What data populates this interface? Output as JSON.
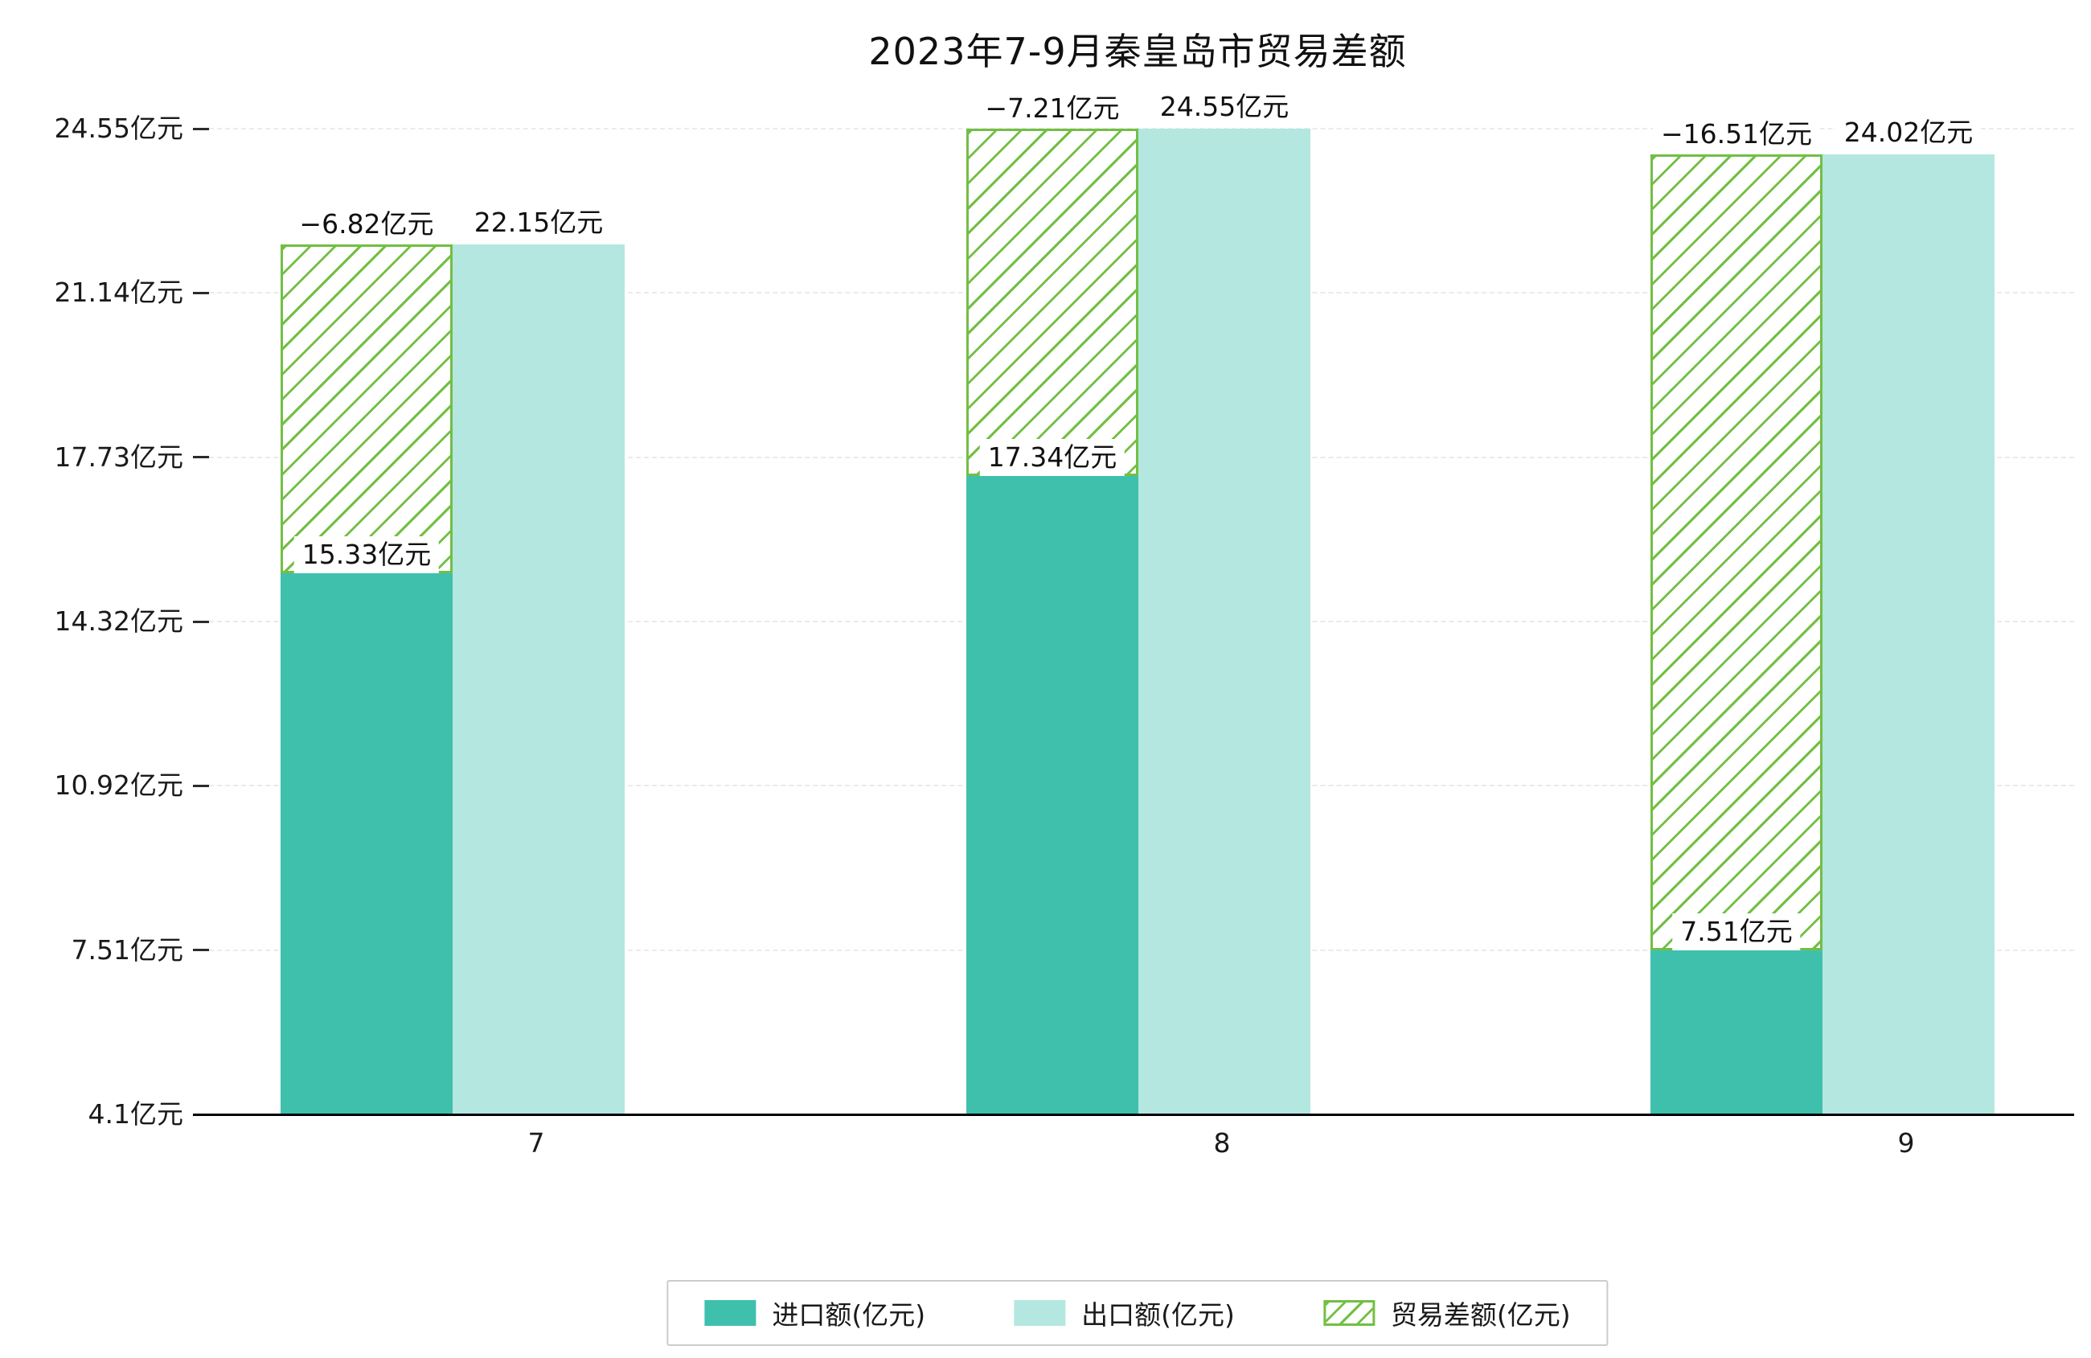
{
  "chart_data": {
    "type": "bar",
    "title": "2023年7-9月秦皇岛市贸易差额",
    "categories": [
      "7",
      "8",
      "9"
    ],
    "series": [
      {
        "name": "进口额(亿元)",
        "values": [
          15.33,
          17.34,
          7.51
        ],
        "labels": [
          "15.33亿元",
          "17.34亿元",
          "7.51亿元"
        ],
        "color": "#3fc0ad",
        "style": "solid"
      },
      {
        "name": "出口额(亿元)",
        "values": [
          22.15,
          24.55,
          24.02
        ],
        "labels": [
          "22.15亿元",
          "24.55亿元",
          "24.02亿元"
        ],
        "color": "#b4e7e0",
        "style": "solid"
      },
      {
        "name": "贸易差额(亿元)",
        "values": [
          -6.82,
          -7.21,
          -16.51
        ],
        "labels": [
          "−6.82亿元",
          "−7.21亿元",
          "−16.51亿元"
        ],
        "color": "#72bf44",
        "style": "hatched"
      }
    ],
    "y_axis": {
      "min": 4.1,
      "max": 24.55,
      "ticks": [
        {
          "value": 24.55,
          "label": "24.55亿元"
        },
        {
          "value": 21.14,
          "label": "21.14亿元"
        },
        {
          "value": 17.73,
          "label": "17.73亿元"
        },
        {
          "value": 14.32,
          "label": "14.32亿元"
        },
        {
          "value": 10.92,
          "label": "10.92亿元"
        },
        {
          "value": 7.51,
          "label": "7.51亿元"
        },
        {
          "value": 4.1,
          "label": "4.1亿元"
        }
      ]
    },
    "x_axis": {
      "tick_labels": [
        "7",
        "8",
        "9"
      ]
    },
    "legend": {
      "position": "bottom-center"
    },
    "grid": true,
    "colors": {
      "import": "#3fc0ad",
      "export": "#b4e7e0",
      "balance": "#72bf44",
      "axis": "#000000",
      "gridline": "#ebebeb",
      "text": "#1a1a1a",
      "background": "#ffffff"
    }
  }
}
